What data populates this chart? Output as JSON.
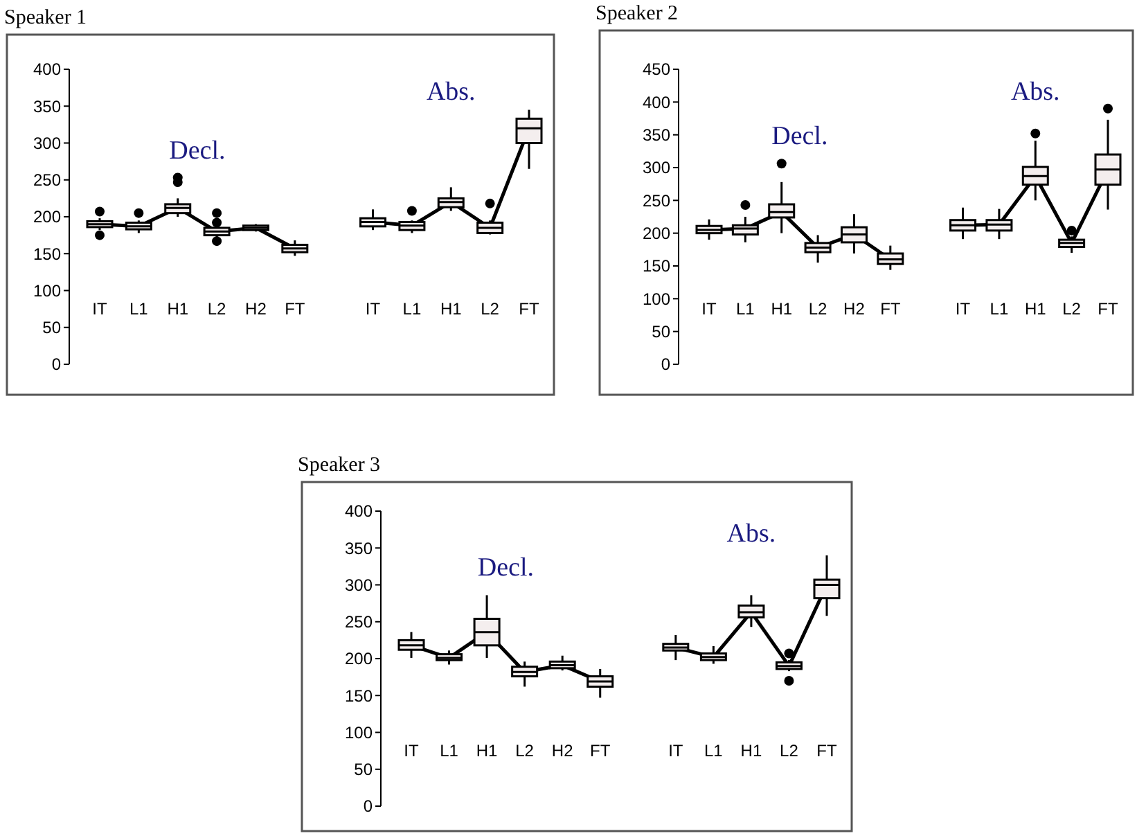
{
  "chart_data": [
    {
      "type": "box",
      "title": "Speaker 1",
      "categories": [
        "IT",
        "L1",
        "H1",
        "L2",
        "H2",
        "FT",
        null,
        "IT",
        "L1",
        "H1",
        "L2",
        "FT"
      ],
      "ylim": [
        0,
        400
      ],
      "yticks": [
        0,
        50,
        100,
        150,
        200,
        250,
        300,
        350,
        400
      ],
      "series": [
        {
          "name": "Decl.",
          "type": "box",
          "color": "#000000",
          "boxes": [
            {
              "low": 182,
              "q1": 186,
              "median": 190,
              "q3": 194,
              "high": 198,
              "outliers": [
                207,
                175
              ]
            },
            {
              "low": 178,
              "q1": 183,
              "median": 187,
              "q3": 192,
              "high": 195,
              "outliers": [
                205
              ]
            },
            {
              "low": 200,
              "q1": 205,
              "median": 212,
              "q3": 217,
              "high": 225,
              "outliers": [
                247,
                253
              ]
            },
            {
              "low": 172,
              "q1": 175,
              "median": 180,
              "q3": 185,
              "high": 188,
              "outliers": [
                205,
                192,
                167
              ]
            },
            {
              "low": 180,
              "q1": 182,
              "median": 185,
              "q3": 188,
              "high": 190
            },
            {
              "low": 147,
              "q1": 152,
              "median": 157,
              "q3": 162,
              "high": 168
            },
            null,
            null,
            null,
            null,
            null,
            null
          ]
        },
        {
          "name": "Abs.",
          "type": "box",
          "color": "#000000",
          "boxes": [
            null,
            null,
            null,
            null,
            null,
            null,
            null,
            {
              "low": 182,
              "q1": 187,
              "median": 193,
              "q3": 198,
              "high": 210
            },
            {
              "low": 178,
              "q1": 182,
              "median": 188,
              "q3": 193,
              "high": 195,
              "outliers": [
                208
              ]
            },
            {
              "low": 208,
              "q1": 213,
              "median": 220,
              "q3": 225,
              "high": 240
            },
            {
              "low": 176,
              "q1": 178,
              "median": 185,
              "q3": 192,
              "high": 195,
              "outliers": [
                218
              ]
            },
            {
              "low": 265,
              "q1": 300,
              "median": 320,
              "q3": 333,
              "high": 345
            }
          ]
        },
        {
          "type": "line",
          "color": "#000000",
          "values": [
            190,
            187,
            212,
            180,
            185,
            157,
            null,
            null,
            null,
            null,
            null,
            null
          ]
        },
        {
          "type": "line",
          "color": "#000000",
          "values": [
            null,
            null,
            null,
            null,
            null,
            null,
            null,
            193,
            188,
            220,
            185,
            320
          ]
        }
      ]
    },
    {
      "type": "box",
      "title": "Speaker 2",
      "categories": [
        "IT",
        "L1",
        "H1",
        "L2",
        "H2",
        "FT",
        null,
        "IT",
        "L1",
        "H1",
        "L2",
        "FT"
      ],
      "ylim": [
        0,
        450
      ],
      "yticks": [
        0,
        50,
        100,
        150,
        200,
        250,
        300,
        350,
        400,
        450
      ],
      "series": [
        {
          "name": "Decl.",
          "type": "box",
          "color": "#000000",
          "boxes": [
            {
              "low": 190,
              "q1": 200,
              "median": 205,
              "q3": 211,
              "high": 221
            },
            {
              "low": 186,
              "q1": 198,
              "median": 207,
              "q3": 212,
              "high": 225,
              "outliers": [
                243
              ]
            },
            {
              "low": 200,
              "q1": 224,
              "median": 232,
              "q3": 244,
              "high": 278,
              "outliers": [
                306
              ]
            },
            {
              "low": 155,
              "q1": 171,
              "median": 178,
              "q3": 185,
              "high": 197
            },
            {
              "low": 169,
              "q1": 186,
              "median": 198,
              "q3": 209,
              "high": 229
            },
            {
              "low": 144,
              "q1": 153,
              "median": 160,
              "q3": 169,
              "high": 181
            },
            null,
            null,
            null,
            null,
            null,
            null
          ]
        },
        {
          "name": "Abs.",
          "type": "box",
          "color": "#000000",
          "boxes": [
            null,
            null,
            null,
            null,
            null,
            null,
            null,
            {
              "low": 191,
              "q1": 204,
              "median": 212,
              "q3": 220,
              "high": 239
            },
            {
              "low": 191,
              "q1": 204,
              "median": 213,
              "q3": 220,
              "high": 237
            },
            {
              "low": 250,
              "q1": 274,
              "median": 287,
              "q3": 301,
              "high": 341,
              "outliers": [
                352
              ]
            },
            {
              "low": 170,
              "q1": 179,
              "median": 185,
              "q3": 190,
              "high": 195,
              "outliers": [
                204
              ]
            },
            {
              "low": 236,
              "q1": 274,
              "median": 297,
              "q3": 320,
              "high": 373,
              "outliers": [
                390
              ]
            }
          ]
        },
        {
          "type": "line",
          "color": "#000000",
          "values": [
            205,
            207,
            232,
            178,
            198,
            160,
            null,
            null,
            null,
            null,
            null,
            null
          ]
        },
        {
          "type": "line",
          "color": "#000000",
          "values": [
            null,
            null,
            null,
            null,
            null,
            null,
            null,
            212,
            213,
            287,
            185,
            297
          ]
        }
      ]
    },
    {
      "type": "box",
      "title": "Speaker 3",
      "categories": [
        "IT",
        "L1",
        "H1",
        "L2",
        "H2",
        "FT",
        null,
        "IT",
        "L1",
        "H1",
        "L2",
        "FT"
      ],
      "ylim": [
        0,
        400
      ],
      "yticks": [
        0,
        50,
        100,
        150,
        200,
        250,
        300,
        350,
        400
      ],
      "series": [
        {
          "name": "Decl.",
          "type": "box",
          "color": "#000000",
          "boxes": [
            {
              "low": 201,
              "q1": 212,
              "median": 218,
              "q3": 225,
              "high": 236
            },
            {
              "low": 192,
              "q1": 198,
              "median": 201,
              "q3": 206,
              "high": 211
            },
            {
              "low": 201,
              "q1": 218,
              "median": 236,
              "q3": 254,
              "high": 286
            },
            {
              "low": 162,
              "q1": 176,
              "median": 182,
              "q3": 189,
              "high": 196
            },
            {
              "low": 184,
              "q1": 187,
              "median": 191,
              "q3": 196,
              "high": 204
            },
            {
              "low": 147,
              "q1": 162,
              "median": 169,
              "q3": 176,
              "high": 186
            },
            null,
            null,
            null,
            null,
            null,
            null
          ]
        },
        {
          "name": "Abs.",
          "type": "box",
          "color": "#000000",
          "boxes": [
            null,
            null,
            null,
            null,
            null,
            null,
            null,
            {
              "low": 198,
              "q1": 211,
              "median": 215,
              "q3": 220,
              "high": 232
            },
            {
              "low": 193,
              "q1": 198,
              "median": 202,
              "q3": 207,
              "high": 217
            },
            {
              "low": 243,
              "q1": 256,
              "median": 263,
              "q3": 272,
              "high": 286
            },
            {
              "low": 183,
              "q1": 186,
              "median": 190,
              "q3": 195,
              "high": 198,
              "outliers": [
                207,
                170
              ]
            },
            {
              "low": 258,
              "q1": 282,
              "median": 300,
              "q3": 307,
              "high": 340
            }
          ]
        },
        {
          "type": "line",
          "color": "#000000",
          "values": [
            218,
            201,
            236,
            182,
            191,
            169,
            null,
            null,
            null,
            null,
            null,
            null
          ]
        },
        {
          "type": "line",
          "color": "#000000",
          "values": [
            null,
            null,
            null,
            null,
            null,
            null,
            null,
            215,
            202,
            263,
            190,
            300
          ]
        }
      ]
    }
  ]
}
